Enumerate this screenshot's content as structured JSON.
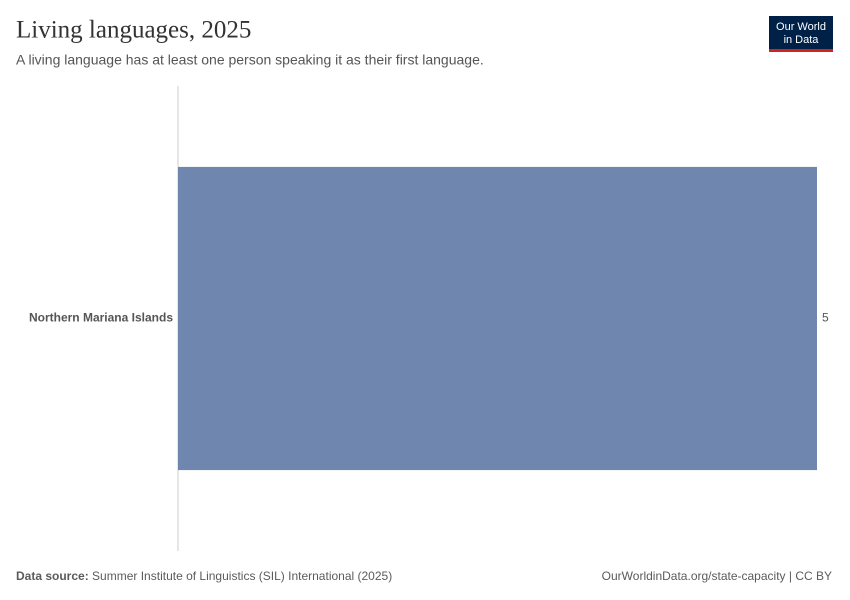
{
  "chart_data": {
    "type": "bar",
    "orientation": "horizontal",
    "title": "Living languages, 2025",
    "subtitle": "A living language has at least one person speaking it as their first language.",
    "categories": [
      "Northern Mariana Islands"
    ],
    "values": [
      5
    ],
    "color": "#6f87ae"
  },
  "logo": {
    "line1": "Our World",
    "line2": "in Data"
  },
  "footer": {
    "source_label": "Data source:",
    "source": "Summer Institute of Linguistics (SIL) International (2025)",
    "url": "OurWorldinData.org/state-capacity | CC BY"
  }
}
